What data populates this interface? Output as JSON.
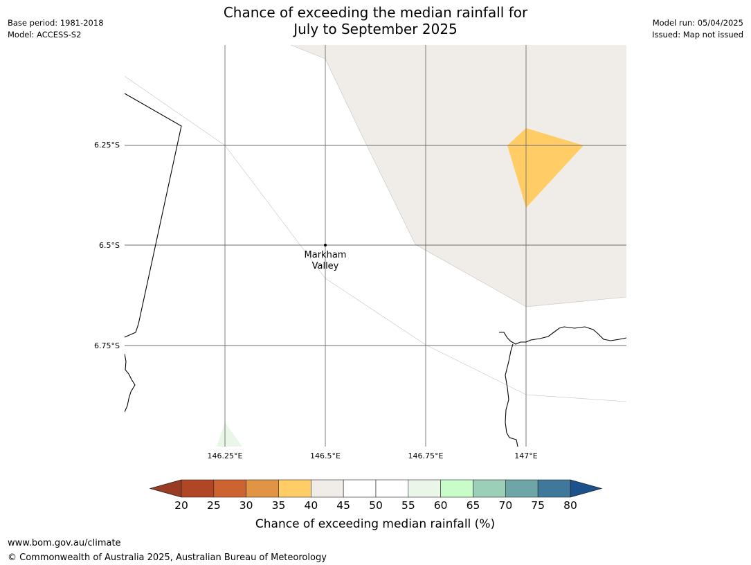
{
  "header": {
    "title_line1": "Chance of exceeding the median rainfall for",
    "title_line2": "July to September 2025",
    "base_period": "Base period: 1981-2018",
    "model": "Model: ACCESS-S2",
    "model_run": "Model run: 05/04/2025",
    "issued": "Issued: Map not issued"
  },
  "map": {
    "lat_labels": [
      "6.25°S",
      "6.5°S",
      "6.75°S"
    ],
    "lon_labels": [
      "146.25°E",
      "146.5°E",
      "146.75°E",
      "147°E"
    ],
    "place": {
      "name_line1": "Markham",
      "name_line2": "Valley"
    },
    "category_colors": {
      "35-40": "#ffcc66",
      "40-45": "#f0ece7",
      "45-55": "#ffffff",
      "55-60": "#e9f6e8"
    }
  },
  "legend": {
    "title": "Chance of exceeding median rainfall (%)",
    "ticks": [
      "20",
      "25",
      "30",
      "35",
      "40",
      "45",
      "50",
      "55",
      "60",
      "65",
      "70",
      "75",
      "80"
    ],
    "colors": [
      "#b04626",
      "#cc6330",
      "#e29445",
      "#ffcc66",
      "#f0ece7",
      "#ffffff",
      "#ffffff",
      "#e9f6e8",
      "#c8fdc9",
      "#9bcfb7",
      "#6ea5a7",
      "#3f789b"
    ],
    "under_color": "#9a3c24",
    "over_color": "#1b528e"
  },
  "footer": {
    "url": "www.bom.gov.au/climate",
    "copyright": "© Commonwealth of Australia 2025, Australian Bureau of Meteorology"
  }
}
